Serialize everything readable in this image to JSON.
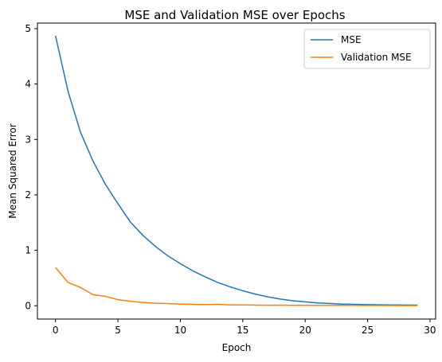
{
  "chart_data": {
    "type": "line",
    "title": "MSE and Validation MSE over Epochs",
    "xlabel": "Epoch",
    "ylabel": "Mean Squared Error",
    "xlim": [
      -1.45,
      30.45
    ],
    "ylim": [
      -0.24,
      5.1
    ],
    "xticks": [
      0,
      5,
      10,
      15,
      20,
      25,
      30
    ],
    "yticks": [
      0,
      1,
      2,
      3,
      4,
      5
    ],
    "grid": false,
    "legend_position": "upper right",
    "x": [
      0,
      1,
      2,
      3,
      4,
      5,
      6,
      7,
      8,
      9,
      10,
      11,
      12,
      13,
      14,
      15,
      16,
      17,
      18,
      19,
      20,
      21,
      22,
      23,
      24,
      25,
      26,
      27,
      28,
      29
    ],
    "series": [
      {
        "name": "MSE",
        "color": "#1f77b4",
        "values": [
          4.87,
          3.87,
          3.13,
          2.61,
          2.19,
          1.84,
          1.51,
          1.27,
          1.07,
          0.9,
          0.76,
          0.63,
          0.52,
          0.42,
          0.34,
          0.27,
          0.21,
          0.16,
          0.12,
          0.09,
          0.07,
          0.05,
          0.04,
          0.03,
          0.025,
          0.02,
          0.017,
          0.015,
          0.013,
          0.012
        ]
      },
      {
        "name": "Validation MSE",
        "color": "#ff7f0e",
        "values": [
          0.69,
          0.42,
          0.33,
          0.2,
          0.17,
          0.11,
          0.08,
          0.06,
          0.045,
          0.04,
          0.03,
          0.025,
          0.02,
          0.025,
          0.015,
          0.015,
          0.012,
          0.01,
          0.01,
          0.008,
          0.008,
          0.006,
          0.005,
          0.005,
          0.005,
          0.004,
          0.004,
          0.004,
          0.003,
          0.003
        ]
      }
    ]
  }
}
